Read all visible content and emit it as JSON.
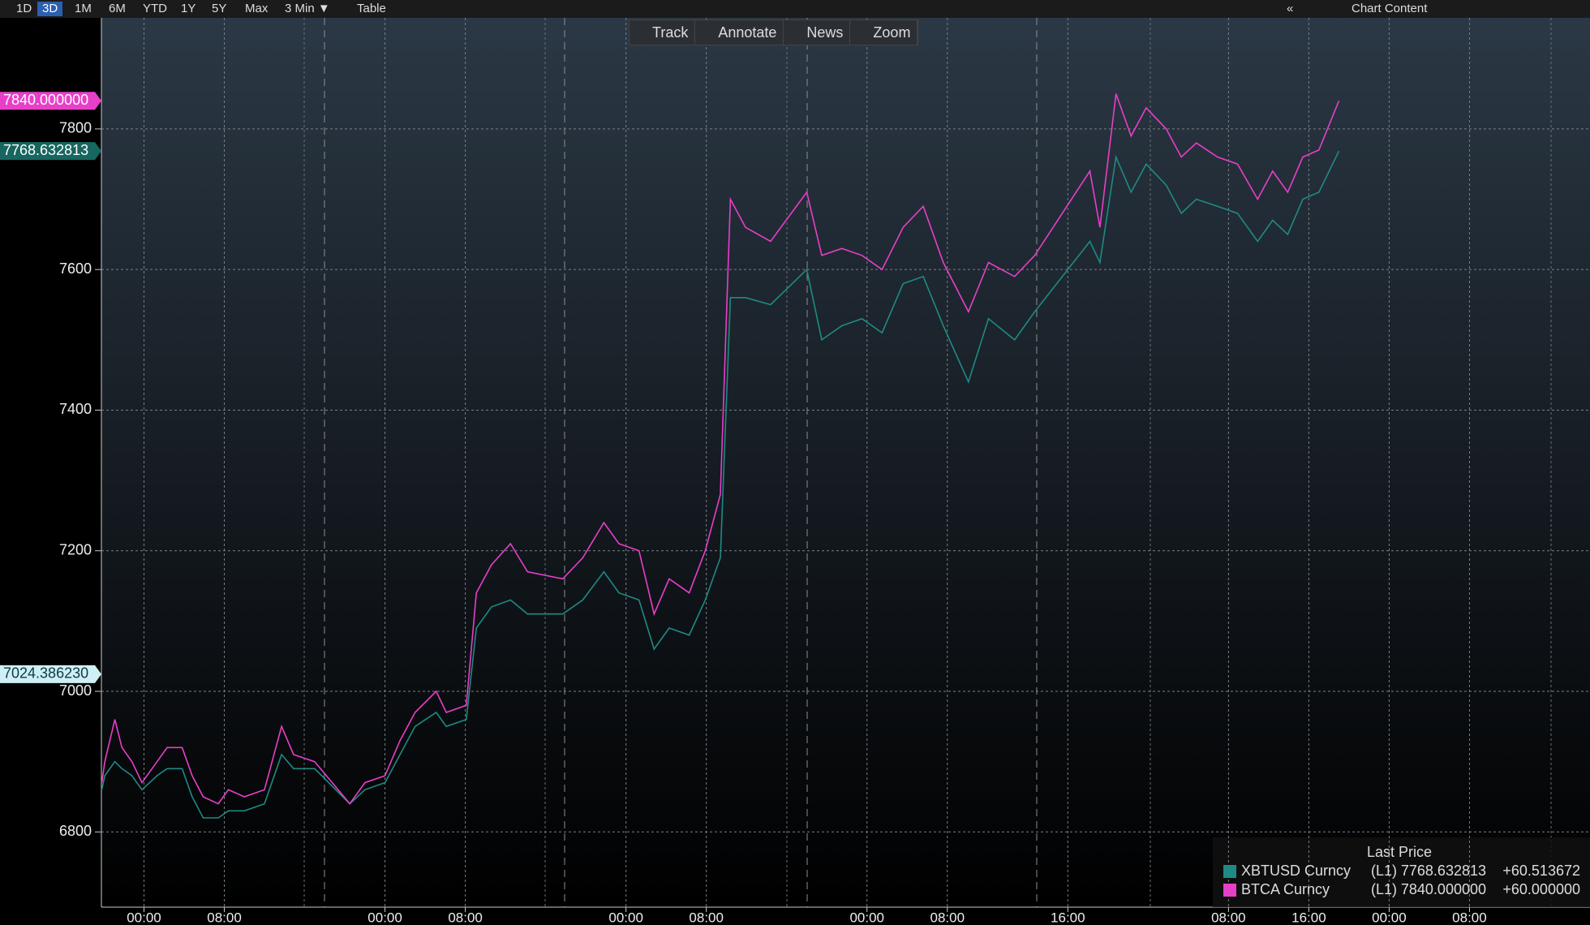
{
  "toolbar": {
    "periods": [
      "1D",
      "3D",
      "1M",
      "6M",
      "YTD",
      "1Y",
      "5Y",
      "Max",
      "3 Min ▼",
      "Table"
    ],
    "right": [
      "«",
      "Chart Content"
    ]
  },
  "chart_tools": [
    "Track",
    "Annotate",
    "News",
    "Zoom"
  ],
  "chart_data": {
    "type": "line",
    "grid": true,
    "x": [
      -4.2,
      -3.9,
      -2.9,
      -2.2,
      -1.2,
      -0.2,
      1.3,
      2.3,
      3.8,
      4.8,
      5.9,
      7.4,
      8.4,
      10,
      12,
      13.7,
      14.9,
      17,
      20.5,
      22,
      24,
      25.5,
      27,
      29.1,
      30.1,
      32.1,
      33.1,
      34.6,
      36.5,
      38.2,
      41.7,
      43.7,
      45.8,
      47.3,
      49.3,
      50.8,
      52.3,
      54.3,
      55.9,
      57.4,
      58.4,
      59.9,
      62.4,
      66,
      67.5,
      69.5,
      71.5,
      73.5,
      75.6,
      77.6,
      79.6,
      82.1,
      84.1,
      86.7,
      88.7,
      94.2,
      95.2,
      96.8,
      98.3,
      99.8,
      101.8,
      103.3,
      104.8,
      106.9,
      108.9,
      110.9,
      112.4,
      113.9,
      115.4,
      117,
      119
    ],
    "xlim": [
      -4.24,
      144
    ],
    "xticks": [
      {
        "value": 0,
        "label": "00:00"
      },
      {
        "value": 8,
        "label": "08:00"
      },
      {
        "value": 24,
        "label": "00:00"
      },
      {
        "value": 32,
        "label": "08:00"
      },
      {
        "value": 48,
        "label": "00:00"
      },
      {
        "value": 56,
        "label": "08:00"
      },
      {
        "value": 72,
        "label": "00:00"
      },
      {
        "value": 80,
        "label": "08:00"
      },
      {
        "value": 92,
        "label": "16:00"
      },
      {
        "value": 108,
        "label": "08:00"
      },
      {
        "value": 116,
        "label": "16:00"
      },
      {
        "value": 124,
        "label": "00:00"
      },
      {
        "value": 132,
        "label": "08:00"
      }
    ],
    "ylim": [
      6693,
      7958
    ],
    "yticks": [
      6800,
      7000,
      7200,
      7400,
      7600,
      7800
    ],
    "legend_title": "Last Price",
    "reference": {
      "value": 7024.38623,
      "label": "7024.386230"
    },
    "series": [
      {
        "name": "XBTUSD Curncy",
        "axis_label": "(L1)",
        "last_label": "7768.632813",
        "change_label": "+60.513672",
        "color": "#1f8a83",
        "flag_color": "#17665f",
        "values": [
          6860,
          6880,
          6900,
          6890,
          6880,
          6860,
          6880,
          6890,
          6890,
          6850,
          6820,
          6820,
          6830,
          6830,
          6840,
          6910,
          6890,
          6890,
          6840,
          6860,
          6870,
          6910,
          6950,
          6970,
          6950,
          6960,
          7090,
          7120,
          7130,
          7110,
          7110,
          7130,
          7170,
          7140,
          7130,
          7060,
          7090,
          7080,
          7130,
          7190,
          7560,
          7560,
          7550,
          7600,
          7500,
          7520,
          7530,
          7510,
          7580,
          7590,
          7520,
          7440,
          7530,
          7500,
          7540,
          7640,
          7610,
          7760,
          7710,
          7750,
          7720,
          7680,
          7700,
          7690,
          7680,
          7640,
          7670,
          7650,
          7700,
          7710,
          7768.632813
        ]
      },
      {
        "name": "BTCA Curncy",
        "axis_label": "(L1)",
        "last_label": "7840.000000",
        "change_label": "+60.000000",
        "color": "#e83fc8",
        "flag_color": "#e83fc8",
        "values": [
          6870,
          6900,
          6960,
          6920,
          6900,
          6870,
          6900,
          6920,
          6920,
          6880,
          6850,
          6840,
          6860,
          6850,
          6860,
          6950,
          6910,
          6900,
          6840,
          6870,
          6880,
          6930,
          6970,
          7000,
          6970,
          6980,
          7140,
          7180,
          7210,
          7170,
          7160,
          7190,
          7240,
          7210,
          7200,
          7110,
          7160,
          7140,
          7200,
          7280,
          7700,
          7660,
          7640,
          7710,
          7620,
          7630,
          7620,
          7600,
          7660,
          7690,
          7610,
          7540,
          7610,
          7590,
          7620,
          7740,
          7660,
          7850,
          7790,
          7830,
          7800,
          7760,
          7780,
          7760,
          7750,
          7700,
          7740,
          7710,
          7760,
          7770,
          7840
        ]
      }
    ]
  }
}
